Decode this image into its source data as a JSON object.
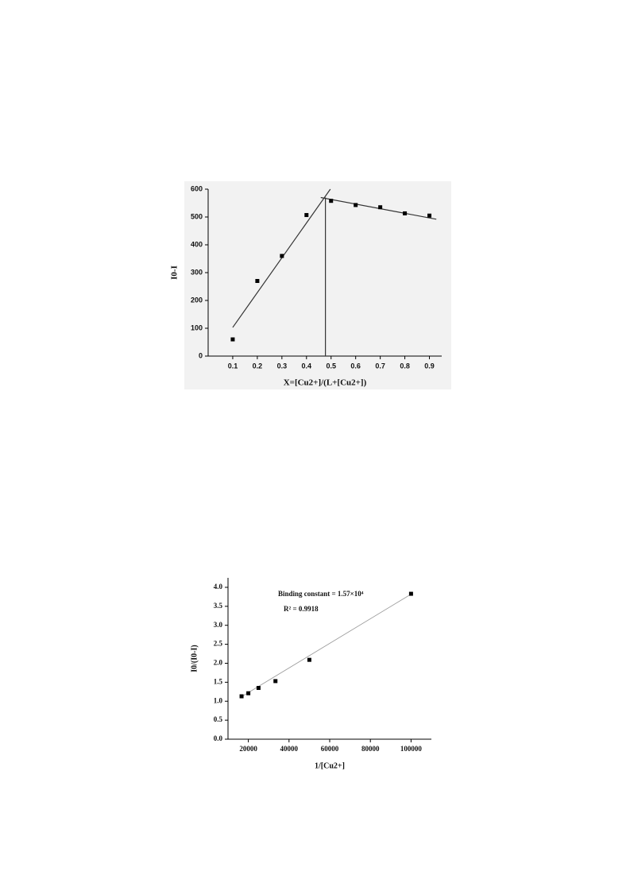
{
  "chart_data": [
    {
      "type": "scatter",
      "xlabel": "X=[Cu2+]/(L+[Cu2+])",
      "ylabel": "I0-I",
      "series": [
        {
          "color": "#000000",
          "x": [
            0.1,
            0.2,
            0.3,
            0.4,
            0.5,
            0.6,
            0.7,
            0.8,
            0.9
          ],
          "values": [
            60,
            270,
            360,
            507,
            558,
            543,
            535,
            513,
            505
          ]
        }
      ],
      "fit_lines": [
        {
          "x": [
            0.1,
            0.497
          ],
          "y": [
            103,
            600
          ]
        },
        {
          "x": [
            0.458,
            0.928
          ],
          "y": [
            570,
            492
          ]
        },
        {
          "x": [
            0.477,
            0.477
          ],
          "y": [
            0,
            570
          ]
        }
      ],
      "xlim": [
        0,
        0.95
      ],
      "ylim": [
        0,
        600
      ],
      "xticks": [
        0.1,
        0.2,
        0.3,
        0.4,
        0.5,
        0.6,
        0.7,
        0.8,
        0.9
      ],
      "yticks": [
        0,
        100,
        200,
        300,
        400,
        500,
        600
      ]
    },
    {
      "type": "scatter",
      "xlabel": "1/[Cu2+]",
      "ylabel": "I0/(I0-I)",
      "annotations": [
        "Binding constant = 1.57×10⁴",
        "R² = 0.9918"
      ],
      "series": [
        {
          "color": "#000000",
          "x": [
            16667,
            20000,
            25000,
            33333,
            50000,
            100000
          ],
          "values": [
            1.13,
            1.21,
            1.35,
            1.53,
            2.09,
            3.83
          ]
        }
      ],
      "fit_lines": [
        {
          "x": [
            16667,
            100000
          ],
          "y": [
            1.12,
            3.82
          ]
        }
      ],
      "xlim": [
        10000,
        110000
      ],
      "ylim": [
        0,
        4.25
      ],
      "xticks": [
        20000,
        40000,
        60000,
        80000,
        100000
      ],
      "yticks": [
        {
          "value": 0,
          "label": "0.0"
        },
        {
          "value": 0.5,
          "label": "0.5"
        },
        {
          "value": 1,
          "label": "1.0"
        },
        {
          "value": 1.5,
          "label": "1.5"
        },
        {
          "value": 2,
          "label": "2.0"
        },
        {
          "value": 2.5,
          "label": "2.5"
        },
        {
          "value": 3,
          "label": "3.0"
        },
        {
          "value": 3.5,
          "label": "3.5"
        },
        {
          "value": 4,
          "label": "4.0"
        }
      ]
    }
  ]
}
